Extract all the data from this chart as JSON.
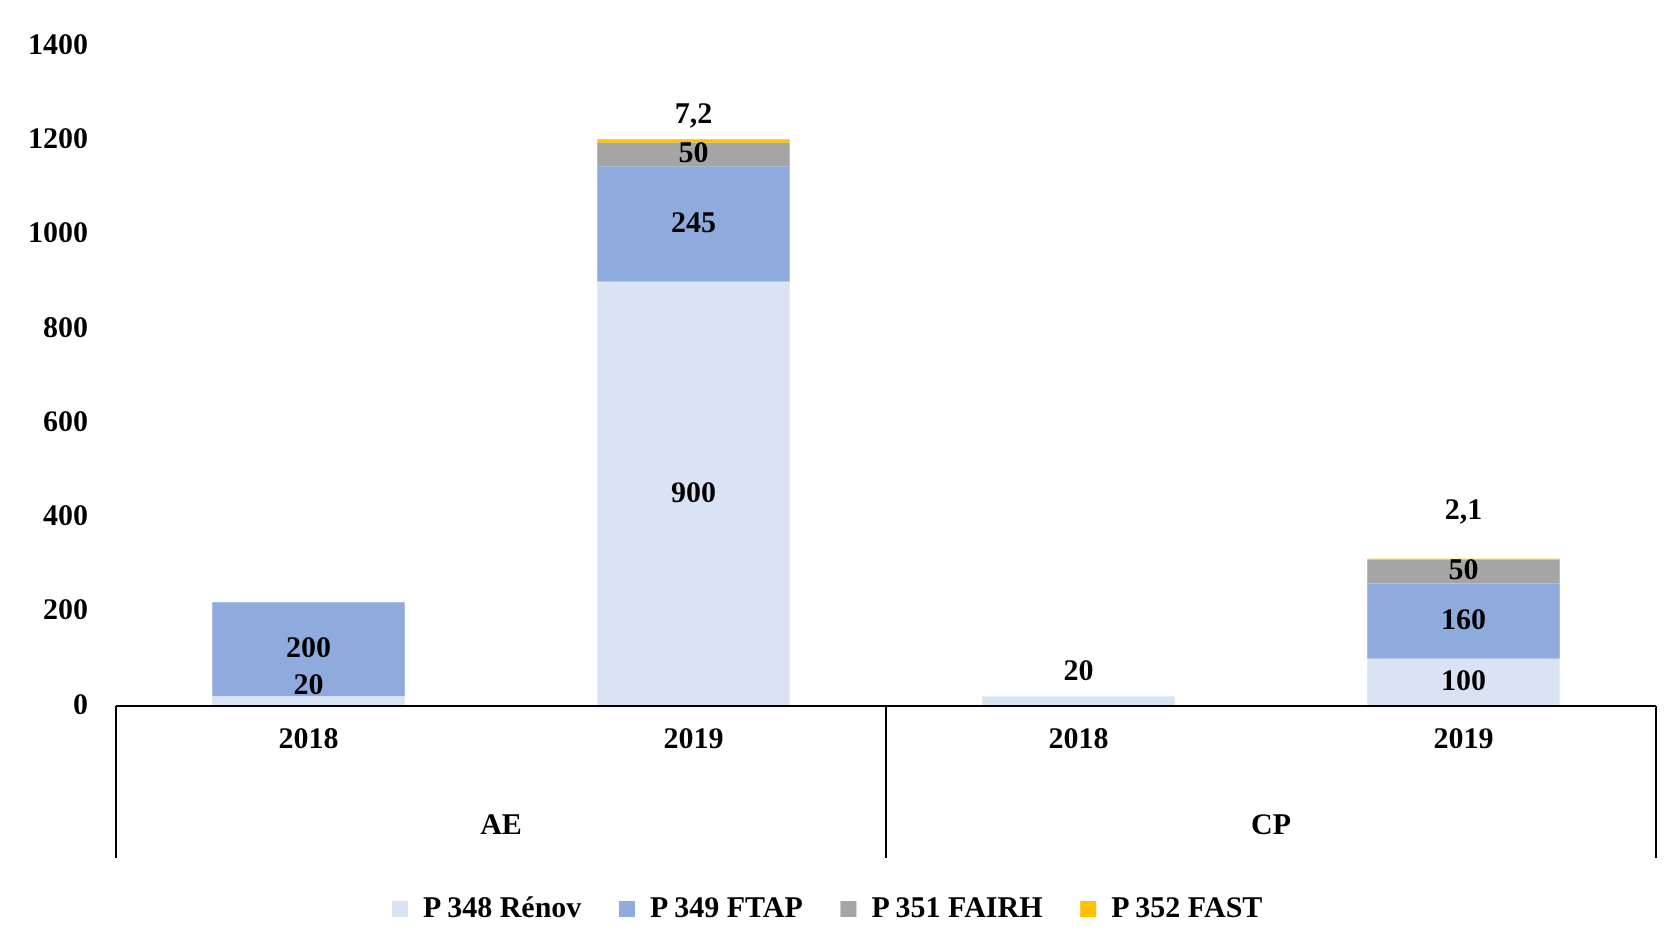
{
  "chart_data": {
    "type": "bar",
    "stacked": true,
    "categories": [
      "2018",
      "2019",
      "2018",
      "2019"
    ],
    "series": [
      {
        "name": "P 348 Rénov",
        "color": "#dae3f3",
        "values": [
          20,
          900,
          20,
          100
        ],
        "value_labels": [
          "20",
          "900",
          "20",
          "100"
        ]
      },
      {
        "name": "P 349 FTAP",
        "color": "#8faadc",
        "values": [
          200,
          245,
          null,
          160
        ],
        "value_labels": [
          "200",
          "245",
          null,
          "160"
        ]
      },
      {
        "name": "P 351 FAIRH",
        "color": "#a5a5a5",
        "values": [
          null,
          50,
          null,
          50
        ],
        "value_labels": [
          null,
          "50",
          null,
          "50"
        ]
      },
      {
        "name": "P 352 FAST",
        "color": "#ffc000",
        "values": [
          null,
          7.2,
          null,
          2.1
        ],
        "value_labels": [
          null,
          "7,2",
          null,
          "2,1"
        ]
      }
    ],
    "annotations": [
      "AE",
      "CP"
    ],
    "ylim": [
      0,
      1400
    ],
    "yticks": [
      0,
      200,
      400,
      600,
      800,
      1000,
      1200,
      1400
    ],
    "grid": false,
    "legend": "bottom"
  }
}
